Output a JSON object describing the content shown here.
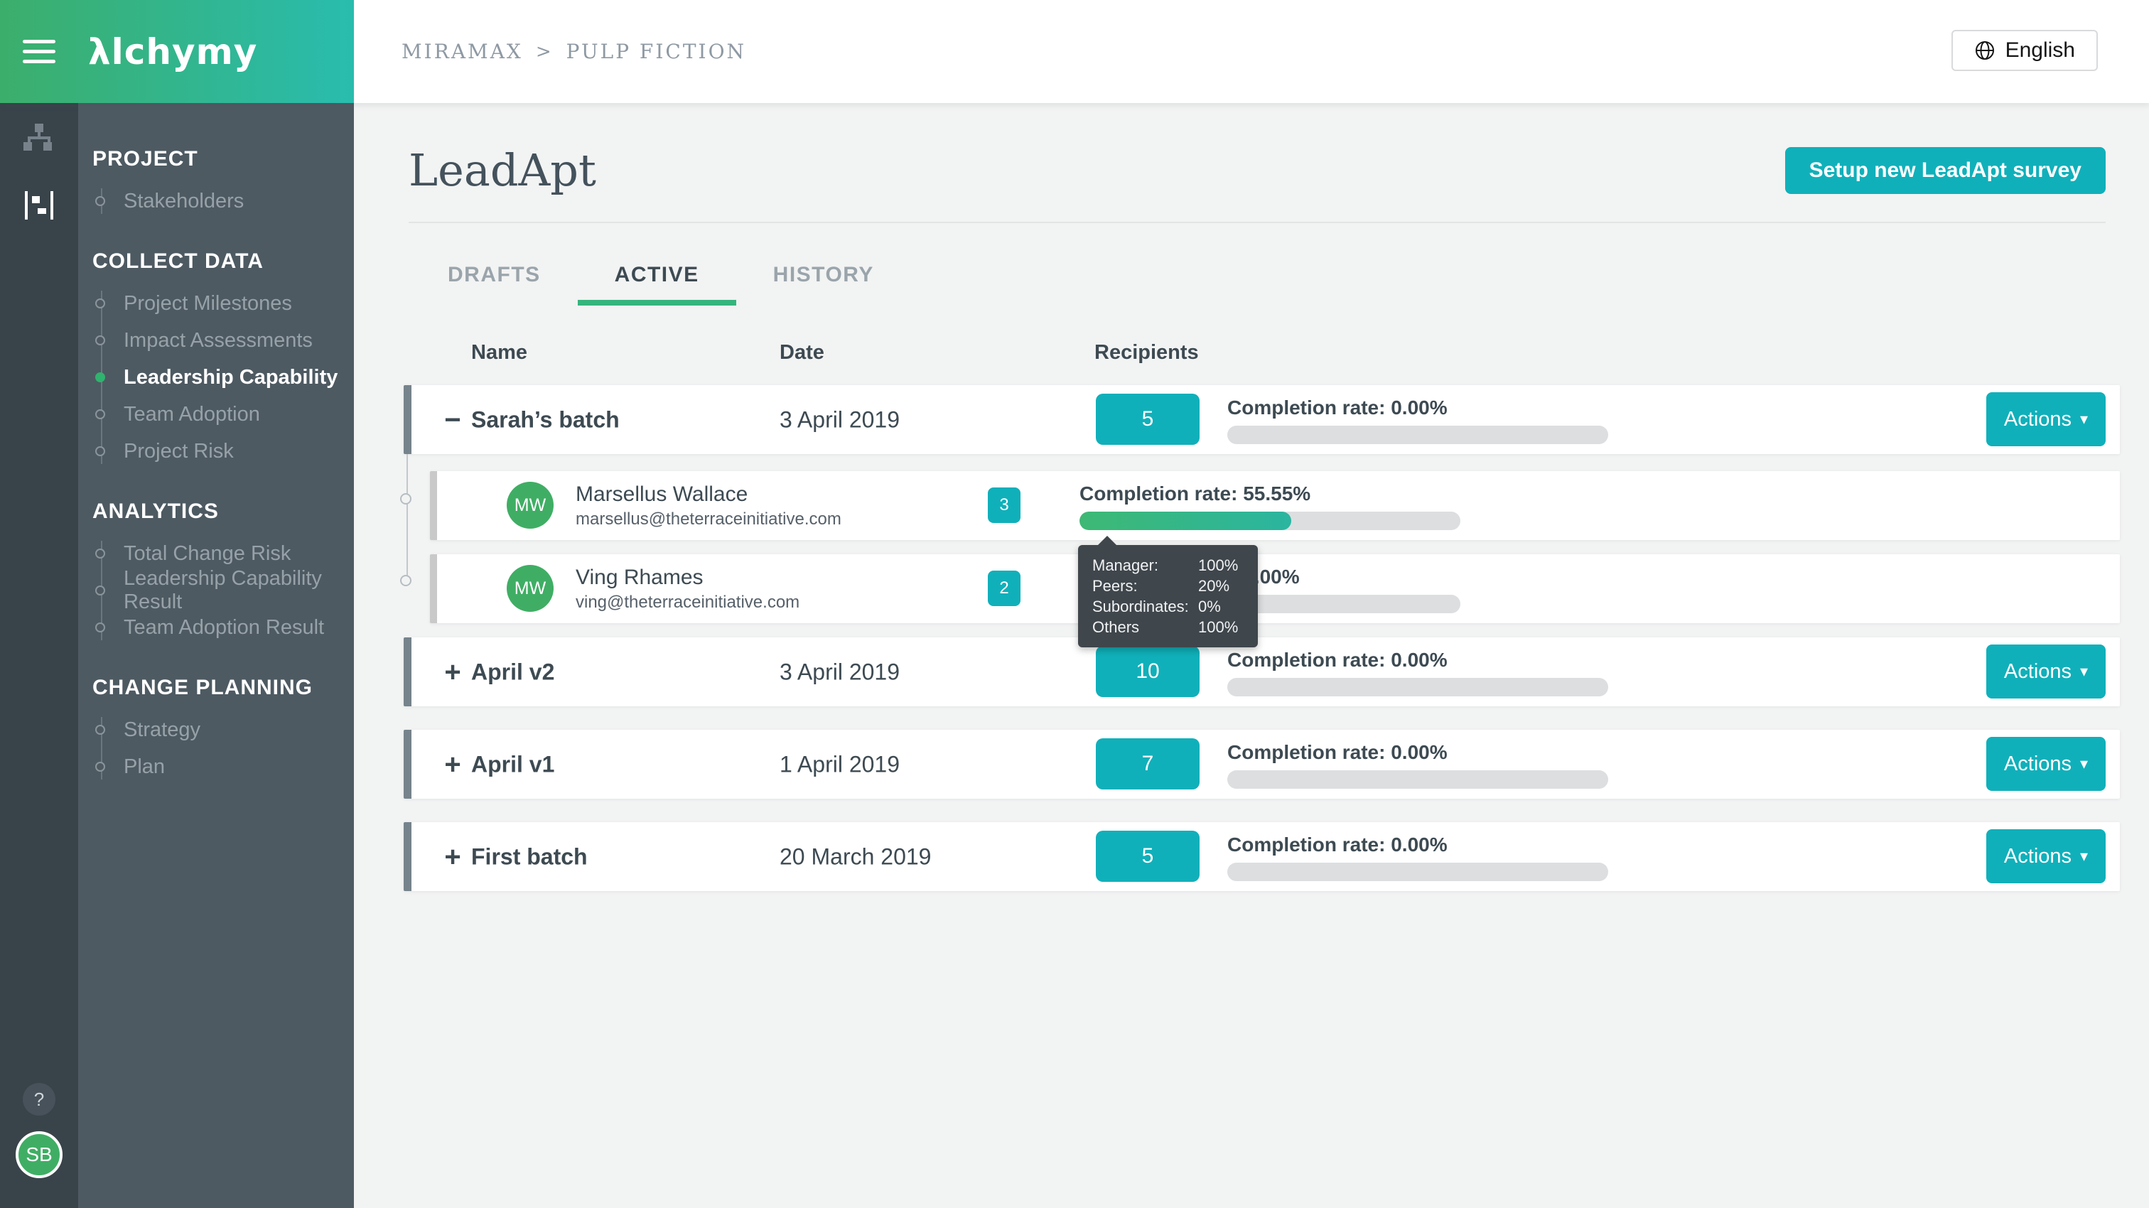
{
  "header": {
    "logo": "λlchymy",
    "breadcrumb": {
      "items": [
        "MIRAMAX",
        "PULP FICTION"
      ],
      "separator": ">"
    },
    "language": {
      "label": "English"
    }
  },
  "sidebar": {
    "sections": [
      {
        "title": "PROJECT",
        "items": [
          {
            "label": "Stakeholders",
            "active": false
          }
        ]
      },
      {
        "title": "COLLECT DATA",
        "items": [
          {
            "label": "Project Milestones",
            "active": false
          },
          {
            "label": "Impact Assessments",
            "active": false
          },
          {
            "label": "Leadership Capability",
            "active": true
          },
          {
            "label": "Team Adoption",
            "active": false
          },
          {
            "label": "Project Risk",
            "active": false
          }
        ]
      },
      {
        "title": "ANALYTICS",
        "items": [
          {
            "label": "Total Change Risk",
            "active": false
          },
          {
            "label": "Leadership Capability Result",
            "active": false
          },
          {
            "label": "Team Adoption Result",
            "active": false
          }
        ]
      },
      {
        "title": "CHANGE PLANNING",
        "items": [
          {
            "label": "Strategy",
            "active": false
          },
          {
            "label": "Plan",
            "active": false
          }
        ]
      }
    ],
    "help_label": "?",
    "user_initials": "SB"
  },
  "page": {
    "title": "LeadApt",
    "setup_button": "Setup new LeadApt survey",
    "tabs": [
      {
        "label": "DRAFTS",
        "active": false
      },
      {
        "label": "ACTIVE",
        "active": true
      },
      {
        "label": "HISTORY",
        "active": false
      }
    ],
    "table": {
      "columns": [
        "Name",
        "Date",
        "Recipients"
      ],
      "actions_label": "Actions",
      "rows": [
        {
          "name": "Sarah’s batch",
          "date": "3 April 2019",
          "recipients": "5",
          "completion_label": "Completion rate: 0.00%",
          "completion_pct": 0,
          "expanded": true,
          "children": [
            {
              "name": "Marsellus Wallace",
              "email": "marsellus@theterraceinitiative.com",
              "initials": "MW",
              "recipients": "3",
              "completion_label": "Completion rate: 55.55%",
              "completion_pct": 55.55
            },
            {
              "name": "Ving Rhames",
              "email": "ving@theterraceinitiative.com",
              "initials": "MW",
              "recipients": "2",
              "completion_label": "Completion rate: 0.00%",
              "completion_pct": 0
            }
          ]
        },
        {
          "name": "April v2",
          "date": "3 April 2019",
          "recipients": "10",
          "completion_label": "Completion rate: 0.00%",
          "completion_pct": 0,
          "expanded": false
        },
        {
          "name": "April v1",
          "date": "1 April 2019",
          "recipients": "7",
          "completion_label": "Completion rate: 0.00%",
          "completion_pct": 0,
          "expanded": false
        },
        {
          "name": "First batch",
          "date": "20 March 2019",
          "recipients": "5",
          "completion_label": "Completion rate: 0.00%",
          "completion_pct": 0,
          "expanded": false
        }
      ]
    },
    "tooltip": {
      "rows": [
        {
          "label": "Manager:",
          "value": "100%"
        },
        {
          "label": "Peers:",
          "value": "20%"
        },
        {
          "label": "Subordinates:",
          "value": "0%"
        },
        {
          "label": "Others",
          "value": "100%"
        }
      ]
    }
  },
  "icons": {
    "collapse": "−",
    "expand": "+",
    "caret": "▾"
  },
  "colors": {
    "accent_teal": "#10b0ba",
    "accent_green": "#3fae64",
    "active_dot": "#2fb36e",
    "header_gradient_start": "#3cae6b",
    "header_gradient_end": "#29bcae",
    "sidebar_bg": "#4e5a62",
    "rail_bg": "#39434a",
    "progress_track": "#dcdee0",
    "progress_fill_start": "#3eb874",
    "progress_fill_end": "#2bb5a0",
    "tooltip_bg": "#3f464c",
    "tab_underline": "#35b57d"
  }
}
